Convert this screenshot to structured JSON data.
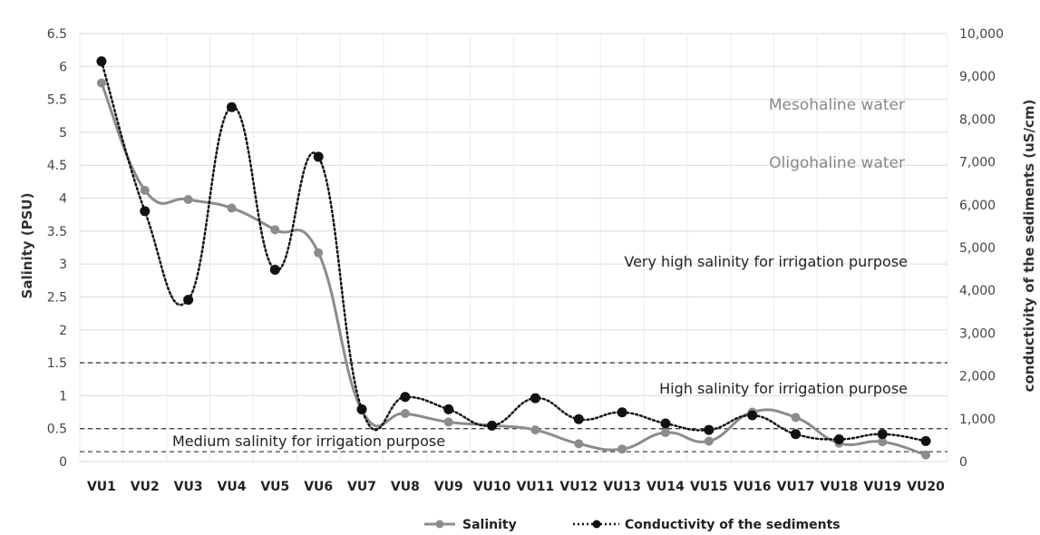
{
  "chart_data": {
    "type": "line",
    "categories": [
      "VU1",
      "VU2",
      "VU3",
      "VU4",
      "VU5",
      "VU6",
      "VU7",
      "VU8",
      "VU9",
      "VU10",
      "VU11",
      "VU12",
      "VU13",
      "VU14",
      "VU15",
      "VU16",
      "VU17",
      "VU18",
      "VU19",
      "VU20"
    ],
    "y_left": {
      "label": "Salinity (PSU)",
      "min": 0,
      "max": 6.5,
      "ticks": [
        "0",
        "0.5",
        "1",
        "1.5",
        "2",
        "2.5",
        "3",
        "3.5",
        "4",
        "4.5",
        "5",
        "5.5",
        "6",
        "6.5"
      ]
    },
    "y_right": {
      "label": "conductivity of the sediments (uS/cm)",
      "min": 0,
      "max": 10000,
      "ticks": [
        "0",
        "1,000",
        "2,000",
        "3,000",
        "4,000",
        "5,000",
        "6,000",
        "7,000",
        "8,000",
        "9,000",
        "10,000"
      ]
    },
    "series": [
      {
        "name": "Salinity",
        "axis": "left",
        "color": "#8c8c8c",
        "style": "solid-smooth",
        "values": [
          5.75,
          4.12,
          3.98,
          3.85,
          3.52,
          3.17,
          0.78,
          0.73,
          0.6,
          0.55,
          0.48,
          0.27,
          0.19,
          0.44,
          0.31,
          0.75,
          0.67,
          0.28,
          0.3,
          0.1
        ]
      },
      {
        "name": "Conductivity of the sediments",
        "axis": "right",
        "color": "#111111",
        "style": "dotted-smooth",
        "values": [
          9350,
          5850,
          3780,
          8280,
          4480,
          7120,
          1220,
          1510,
          1220,
          840,
          1480,
          990,
          1150,
          890,
          740,
          1080,
          640,
          520,
          640,
          480
        ]
      }
    ],
    "reference_lines_left": [
      1.5,
      0.5,
      0.15
    ],
    "annotations": {
      "mesohaline": "Mesohaline water",
      "oligohaline": "Oligohaline water",
      "very_high": "Very high salinity for irrigation purpose",
      "high": "High salinity for irrigation purpose",
      "medium": "Medium salinity for irrigation purpose"
    },
    "legend_position": "bottom",
    "grid": "horizontal"
  }
}
